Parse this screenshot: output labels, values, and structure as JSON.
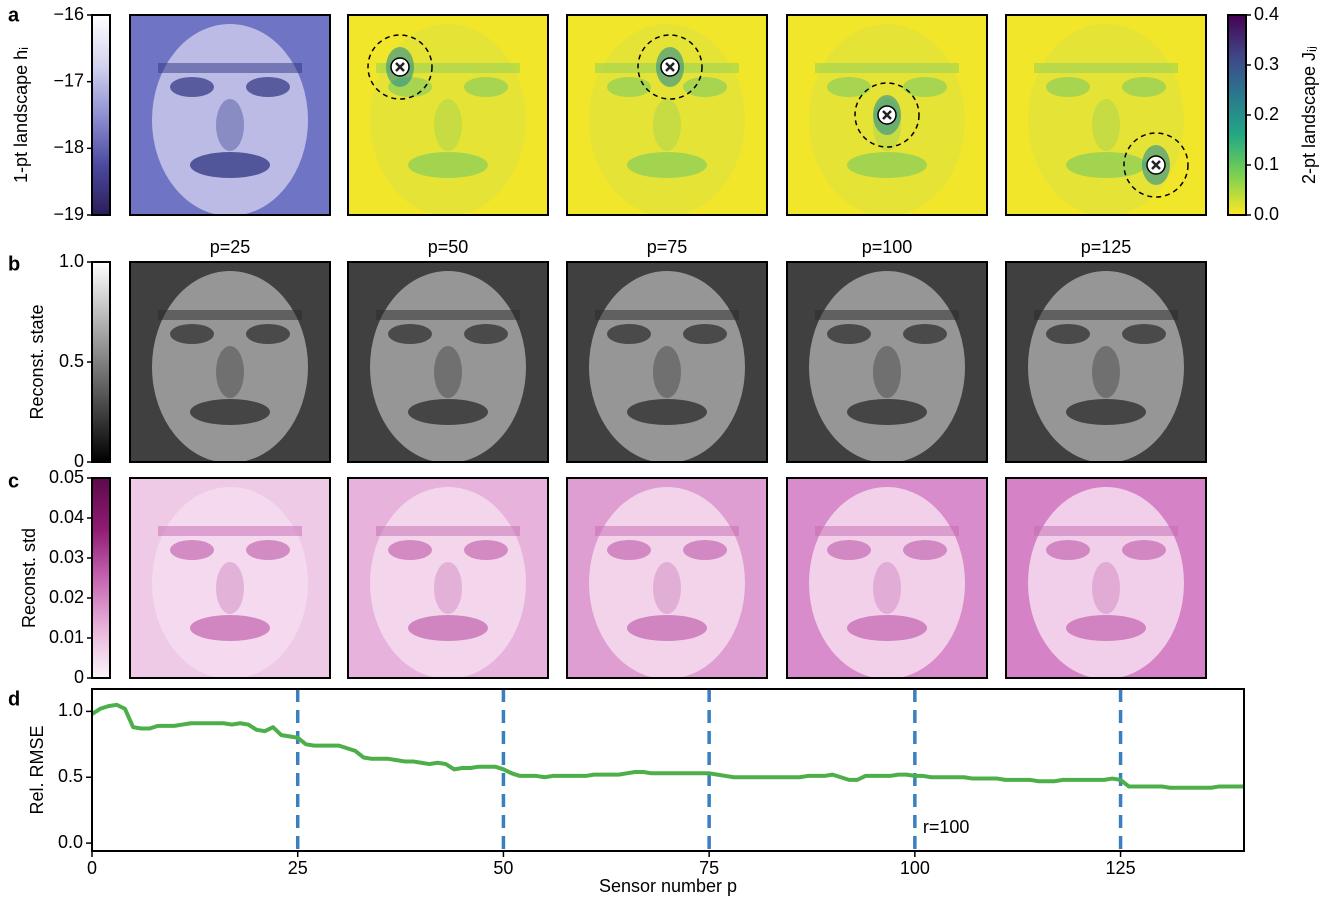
{
  "panel_labels": [
    "a",
    "b",
    "c",
    "d"
  ],
  "image_titles": [
    "p=25",
    "p=50",
    "p=75",
    "p=100",
    "p=125"
  ],
  "chart_data": [
    {
      "type": "colorbar",
      "label": "1-pt landscape hᵢ",
      "ylim": [
        -19,
        -16
      ],
      "yticks": [
        {
          "value": -16,
          "label": "−16"
        },
        {
          "value": -17,
          "label": "−17"
        },
        {
          "value": -18,
          "label": "−18"
        },
        {
          "value": -19,
          "label": "−19"
        }
      ],
      "colormap": [
        "#2b1d5a",
        "#4b4aa0",
        "#8f90d2",
        "#d4d3ef",
        "#ffffff"
      ]
    },
    {
      "type": "colorbar",
      "label": "2-pt landscape Jᵢⱼ",
      "ylim": [
        0,
        0.4
      ],
      "yticks": [
        {
          "value": 0,
          "label": "0.0"
        },
        0.1,
        0.2,
        0.3,
        0.4
      ],
      "colormap": [
        "#fde725",
        "#7ad151",
        "#22a884",
        "#2a788e",
        "#414487",
        "#440154"
      ]
    },
    {
      "type": "colorbar",
      "label": "Reconst. state",
      "ylim": [
        0,
        1
      ],
      "yticks": [
        0,
        0.5,
        {
          "value": 1,
          "label": "1.0"
        }
      ],
      "colormap": [
        "#000000",
        "#808080",
        "#ffffff"
      ]
    },
    {
      "type": "colorbar",
      "label": "Reconst. std",
      "ylim": [
        0,
        0.05
      ],
      "yticks": [
        0,
        0.01,
        0.02,
        0.03,
        0.04,
        0.05
      ],
      "colormap": [
        "#fbf4f9",
        "#e8b3da",
        "#c564b0",
        "#8e1a72",
        "#5c0a4a"
      ]
    },
    {
      "type": "line",
      "xlabel": "Sensor number p",
      "ylabel": "Rel. RMSE",
      "xlim": [
        0,
        140
      ],
      "ylim": [
        -0.06,
        1.17
      ],
      "xticks": [
        0,
        25,
        50,
        75,
        100,
        125
      ],
      "yticks": [
        {
          "value": 0,
          "label": "0.0"
        },
        0.5,
        {
          "value": 1,
          "label": "1.0"
        }
      ],
      "x": [
        0,
        1,
        2,
        3,
        4,
        5,
        6,
        7,
        8,
        9,
        10,
        11,
        12,
        13,
        14,
        15,
        16,
        17,
        18,
        19,
        20,
        21,
        22,
        23,
        24,
        25,
        26,
        27,
        28,
        29,
        30,
        31,
        32,
        33,
        34,
        35,
        36,
        37,
        38,
        39,
        40,
        41,
        42,
        43,
        44,
        45,
        46,
        47,
        48,
        49,
        50,
        51,
        52,
        53,
        54,
        55,
        56,
        57,
        58,
        59,
        60,
        61,
        62,
        63,
        64,
        65,
        66,
        67,
        68,
        69,
        70,
        71,
        72,
        73,
        74,
        75,
        76,
        77,
        78,
        79,
        80,
        81,
        82,
        83,
        84,
        85,
        86,
        87,
        88,
        89,
        90,
        91,
        92,
        93,
        94,
        95,
        96,
        97,
        98,
        99,
        100,
        101,
        102,
        103,
        104,
        105,
        106,
        107,
        108,
        109,
        110,
        111,
        112,
        113,
        114,
        115,
        116,
        117,
        118,
        119,
        120,
        121,
        122,
        123,
        124,
        125,
        126,
        127,
        128,
        129,
        130,
        131,
        132,
        133,
        134,
        135,
        136,
        137,
        138,
        139,
        140
      ],
      "series": [
        {
          "color": "#4daf4a",
          "values": [
            0.98,
            1.02,
            1.04,
            1.05,
            1.02,
            0.88,
            0.87,
            0.87,
            0.89,
            0.89,
            0.89,
            0.9,
            0.91,
            0.91,
            0.91,
            0.91,
            0.91,
            0.9,
            0.91,
            0.9,
            0.86,
            0.85,
            0.88,
            0.82,
            0.81,
            0.8,
            0.75,
            0.74,
            0.74,
            0.74,
            0.74,
            0.72,
            0.7,
            0.65,
            0.64,
            0.64,
            0.64,
            0.63,
            0.62,
            0.62,
            0.61,
            0.6,
            0.61,
            0.6,
            0.56,
            0.57,
            0.57,
            0.58,
            0.58,
            0.58,
            0.56,
            0.53,
            0.51,
            0.51,
            0.51,
            0.5,
            0.51,
            0.51,
            0.51,
            0.51,
            0.51,
            0.52,
            0.52,
            0.52,
            0.52,
            0.53,
            0.54,
            0.54,
            0.53,
            0.53,
            0.53,
            0.53,
            0.53,
            0.53,
            0.53,
            0.53,
            0.52,
            0.51,
            0.5,
            0.5,
            0.5,
            0.5,
            0.5,
            0.5,
            0.5,
            0.5,
            0.5,
            0.51,
            0.51,
            0.51,
            0.52,
            0.5,
            0.48,
            0.48,
            0.51,
            0.51,
            0.51,
            0.51,
            0.52,
            0.52,
            0.51,
            0.51,
            0.5,
            0.5,
            0.5,
            0.5,
            0.5,
            0.49,
            0.49,
            0.49,
            0.49,
            0.48,
            0.48,
            0.48,
            0.48,
            0.47,
            0.47,
            0.47,
            0.48,
            0.48,
            0.48,
            0.48,
            0.48,
            0.48,
            0.49,
            0.48,
            0.43,
            0.43,
            0.43,
            0.43,
            0.43,
            0.42,
            0.42,
            0.42,
            0.42,
            0.42,
            0.42,
            0.43,
            0.43,
            0.43,
            0.43
          ]
        }
      ],
      "vlines": [
        25,
        50,
        75,
        100,
        125
      ],
      "vline_color": "#3a7fbf",
      "annotation": "r=100"
    }
  ]
}
